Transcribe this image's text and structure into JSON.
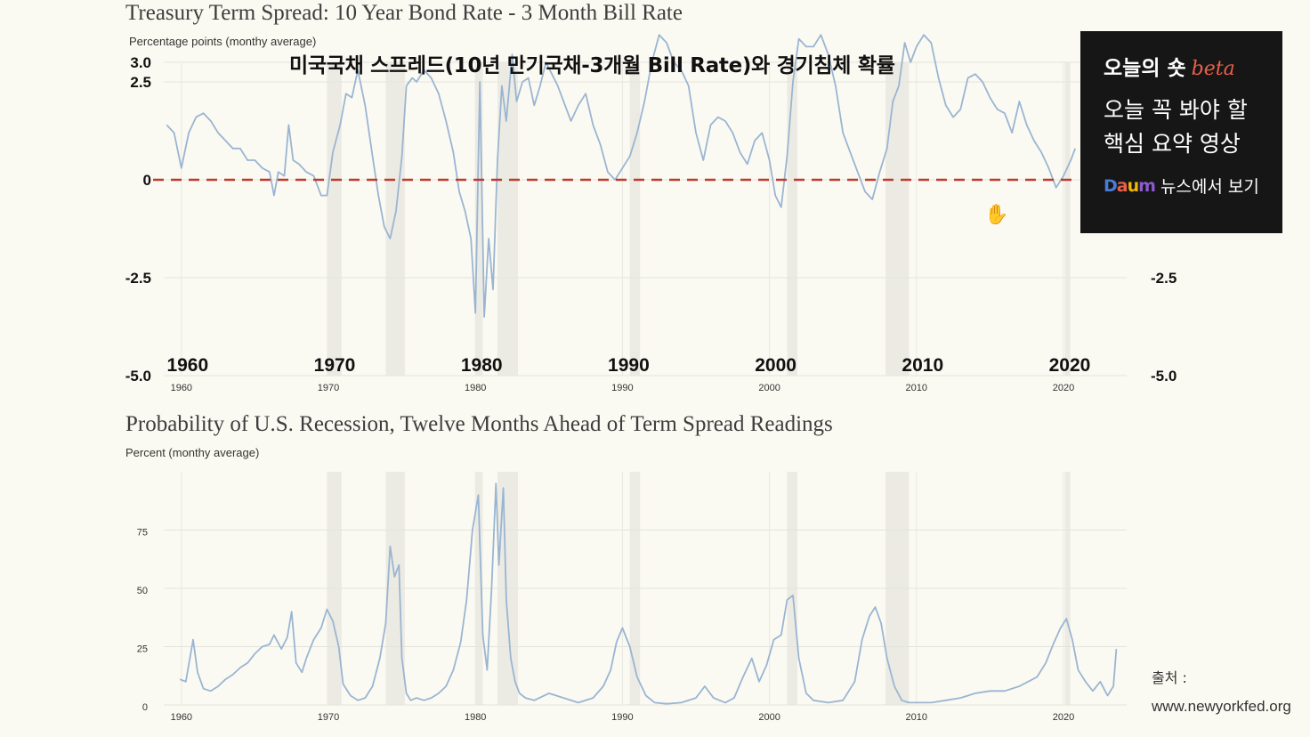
{
  "overlay_title": "미국국채 스프레드(10년 만기국채-3개월 Bill Rate)와 경기침체 확률",
  "promo": {
    "brand": "오늘의 숏",
    "beta": "beta",
    "line1": "오늘 꼭 봐야 할",
    "line2": "핵심 요약 영상",
    "daum_letters": [
      "D",
      "a",
      "u",
      "m"
    ],
    "news_link": "뉴스에서 보기",
    "colors": [
      "#4a7bd6",
      "#e8604a",
      "#f0b800",
      "#8a5ad0"
    ]
  },
  "source": {
    "label": "출처 :",
    "url": "www.newyorkfed.org"
  },
  "cursor_icon": "hand-cursor-icon",
  "chart_data": [
    {
      "type": "line",
      "title": "Treasury Term Spread: 10 Year Bond Rate - 3 Month Bill Rate",
      "ylabel": "Percentage points (monthy average)",
      "ylim": [
        -5.0,
        3.0
      ],
      "xlim": [
        1958.8,
        2024.3
      ],
      "y_ticks": [
        "3.0",
        "2.5",
        "0",
        "-2.5",
        "-5.0"
      ],
      "y_tick_values": [
        3.0,
        2.5,
        0,
        -2.5,
        -5.0
      ],
      "y_ticks_right": [
        "-2.5",
        "-5.0"
      ],
      "x_ticks": [
        "1960",
        "1970",
        "1980",
        "1990",
        "2000",
        "2010",
        "2020"
      ],
      "x_tick_values": [
        1960,
        1970,
        1980,
        1990,
        2000,
        2010,
        2020
      ],
      "grid": true,
      "reference_line": {
        "y": 0,
        "style": "dashed",
        "color": "#c0392b"
      },
      "line_color": "#9ab5d2",
      "recession_shading": [
        [
          1969.9,
          1970.9
        ],
        [
          1973.9,
          1975.2
        ],
        [
          1980.0,
          1980.5
        ],
        [
          1981.5,
          1982.9
        ],
        [
          1990.5,
          1991.2
        ],
        [
          2001.2,
          2001.9
        ],
        [
          2007.9,
          2009.5
        ],
        [
          2020.1,
          2020.4
        ]
      ],
      "series": [
        {
          "x": [
            1959.0,
            1959.5,
            1960.0,
            1960.5,
            1961.0,
            1961.5,
            1962.0,
            1962.5,
            1963.0,
            1963.5,
            1964.0,
            1964.5,
            1965.0,
            1965.5,
            1966.0,
            1966.3,
            1966.6,
            1967.0,
            1967.3,
            1967.6,
            1968.0,
            1968.5,
            1969.0,
            1969.5,
            1969.9,
            1970.3,
            1970.8,
            1971.2,
            1971.6,
            1972.0,
            1972.5,
            1973.0,
            1973.4,
            1973.8,
            1974.2,
            1974.6,
            1975.0,
            1975.3,
            1975.7,
            1976.0,
            1976.5,
            1977.0,
            1977.5,
            1978.0,
            1978.5,
            1978.9,
            1979.3,
            1979.7,
            1980.0,
            1980.3,
            1980.6,
            1980.9,
            1981.2,
            1981.5,
            1981.8,
            1982.1,
            1982.5,
            1982.8,
            1983.2,
            1983.6,
            1984.0,
            1984.4,
            1984.8,
            1985.2,
            1985.6,
            1986.0,
            1986.5,
            1987.0,
            1987.5,
            1988.0,
            1988.5,
            1989.0,
            1989.5,
            1990.0,
            1990.5,
            1991.0,
            1991.5,
            1992.0,
            1992.5,
            1993.0,
            1993.5,
            1994.0,
            1994.5,
            1995.0,
            1995.5,
            1996.0,
            1996.5,
            1997.0,
            1997.5,
            1998.0,
            1998.5,
            1999.0,
            1999.5,
            2000.0,
            2000.4,
            2000.8,
            2001.2,
            2001.6,
            2002.0,
            2002.5,
            2003.0,
            2003.5,
            2004.0,
            2004.5,
            2005.0,
            2005.5,
            2006.0,
            2006.5,
            2007.0,
            2007.5,
            2008.0,
            2008.4,
            2008.8,
            2009.2,
            2009.6,
            2010.0,
            2010.5,
            2011.0,
            2011.5,
            2012.0,
            2012.5,
            2013.0,
            2013.5,
            2014.0,
            2014.5,
            2015.0,
            2015.5,
            2016.0,
            2016.5,
            2017.0,
            2017.5,
            2018.0,
            2018.5,
            2019.0,
            2019.5,
            2020.0,
            2020.5,
            2020.8
          ],
          "y": [
            1.4,
            1.2,
            0.3,
            1.2,
            1.6,
            1.7,
            1.5,
            1.2,
            1.0,
            0.8,
            0.8,
            0.5,
            0.5,
            0.3,
            0.2,
            -0.4,
            0.2,
            0.1,
            1.4,
            0.5,
            0.4,
            0.2,
            0.1,
            -0.4,
            -0.4,
            0.7,
            1.4,
            2.2,
            2.1,
            2.8,
            1.9,
            0.6,
            -0.4,
            -1.2,
            -1.5,
            -0.8,
            0.6,
            2.4,
            2.6,
            2.5,
            2.8,
            2.6,
            2.2,
            1.5,
            0.7,
            -0.3,
            -0.8,
            -1.5,
            -3.4,
            2.5,
            -3.5,
            -1.5,
            -2.8,
            0.5,
            2.4,
            1.5,
            3.2,
            2.0,
            2.5,
            2.6,
            1.9,
            2.4,
            3.0,
            2.7,
            2.4,
            2.0,
            1.5,
            1.9,
            2.2,
            1.4,
            0.9,
            0.2,
            0.0,
            0.3,
            0.6,
            1.2,
            2.0,
            3.0,
            3.7,
            3.5,
            3.0,
            2.8,
            2.4,
            1.2,
            0.5,
            1.4,
            1.6,
            1.5,
            1.2,
            0.7,
            0.4,
            1.0,
            1.2,
            0.5,
            -0.4,
            -0.7,
            0.6,
            2.5,
            3.6,
            3.4,
            3.4,
            3.7,
            3.2,
            2.4,
            1.2,
            0.7,
            0.2,
            -0.3,
            -0.5,
            0.2,
            0.8,
            2.0,
            2.4,
            3.5,
            3.0,
            3.4,
            3.7,
            3.5,
            2.6,
            1.9,
            1.6,
            1.8,
            2.6,
            2.7,
            2.5,
            2.1,
            1.8,
            1.7,
            1.2,
            2.0,
            1.4,
            1.0,
            0.7,
            0.3,
            -0.2,
            0.1,
            0.5,
            0.8
          ]
        }
      ]
    },
    {
      "type": "line",
      "title": "Probability of U.S. Recession, Twelve Months Ahead of Term Spread Readings",
      "ylabel": "Percent (monthy average)",
      "ylim": [
        0,
        100
      ],
      "xlim": [
        1958.8,
        2024.3
      ],
      "y_ticks": [
        "75",
        "50",
        "25",
        "0"
      ],
      "y_tick_values": [
        75,
        50,
        25,
        0
      ],
      "x_ticks": [
        "1960",
        "1970",
        "1980",
        "1990",
        "2000",
        "2010",
        "2020"
      ],
      "x_tick_values": [
        1960,
        1970,
        1980,
        1990,
        2000,
        2010,
        2020
      ],
      "grid": true,
      "line_color": "#9ab5d2",
      "recession_shading": [
        [
          1969.9,
          1970.9
        ],
        [
          1973.9,
          1975.2
        ],
        [
          1980.0,
          1980.5
        ],
        [
          1981.5,
          1982.9
        ],
        [
          1990.5,
          1991.2
        ],
        [
          2001.2,
          2001.9
        ],
        [
          2007.9,
          2009.5
        ],
        [
          2020.1,
          2020.4
        ]
      ],
      "series": [
        {
          "x": [
            1959.9,
            1960.3,
            1960.8,
            1961.1,
            1961.5,
            1962.0,
            1962.5,
            1963.0,
            1963.5,
            1964.0,
            1964.5,
            1965.0,
            1965.5,
            1966.0,
            1966.3,
            1966.8,
            1967.2,
            1967.5,
            1967.8,
            1968.2,
            1968.5,
            1969.0,
            1969.5,
            1969.9,
            1970.3,
            1970.7,
            1971.0,
            1971.5,
            1972.0,
            1972.5,
            1973.0,
            1973.5,
            1973.9,
            1974.2,
            1974.5,
            1974.8,
            1975.0,
            1975.3,
            1975.6,
            1976.0,
            1976.5,
            1977.0,
            1977.5,
            1978.0,
            1978.5,
            1979.0,
            1979.4,
            1979.8,
            1980.2,
            1980.5,
            1980.8,
            1981.1,
            1981.4,
            1981.6,
            1981.9,
            1982.1,
            1982.4,
            1982.7,
            1983.0,
            1983.4,
            1984.0,
            1985.0,
            1986.0,
            1987.0,
            1988.0,
            1988.7,
            1989.2,
            1989.6,
            1990.0,
            1990.5,
            1991.0,
            1991.6,
            1992.2,
            1993.0,
            1994.0,
            1995.0,
            1995.6,
            1996.2,
            1997.0,
            1997.6,
            1998.2,
            1998.8,
            1999.3,
            1999.8,
            2000.3,
            2000.8,
            2001.2,
            2001.6,
            2002.0,
            2002.5,
            2003.0,
            2004.0,
            2005.0,
            2005.8,
            2006.3,
            2006.8,
            2007.2,
            2007.6,
            2008.0,
            2008.5,
            2009.0,
            2009.5,
            2010.0,
            2011.0,
            2012.0,
            2013.0,
            2014.0,
            2015.0,
            2016.0,
            2017.0,
            2017.6,
            2018.2,
            2018.8,
            2019.3,
            2019.8,
            2020.2,
            2020.6,
            2021.0,
            2021.5,
            2022.0,
            2022.5,
            2023.0,
            2023.4,
            2023.6
          ],
          "y": [
            11,
            10,
            28,
            14,
            7,
            6,
            8,
            11,
            13,
            16,
            18,
            22,
            25,
            26,
            30,
            24,
            29,
            40,
            18,
            14,
            20,
            28,
            33,
            41,
            36,
            25,
            9,
            4,
            2,
            3,
            8,
            20,
            35,
            68,
            55,
            60,
            20,
            5,
            2,
            3,
            2,
            3,
            5,
            8,
            15,
            27,
            45,
            75,
            90,
            30,
            15,
            50,
            95,
            60,
            93,
            45,
            20,
            10,
            5,
            3,
            2,
            5,
            3,
            1,
            3,
            8,
            15,
            27,
            33,
            25,
            12,
            4,
            1,
            0.5,
            1,
            3,
            8,
            3,
            1,
            3,
            12,
            20,
            10,
            17,
            28,
            30,
            45,
            47,
            20,
            5,
            2,
            1,
            2,
            10,
            28,
            38,
            42,
            35,
            20,
            8,
            2,
            1,
            1,
            1,
            2,
            3,
            5,
            6,
            6,
            8,
            10,
            12,
            18,
            26,
            33,
            37,
            28,
            15,
            10,
            6,
            10,
            4,
            8,
            24
          ]
        }
      ]
    }
  ]
}
